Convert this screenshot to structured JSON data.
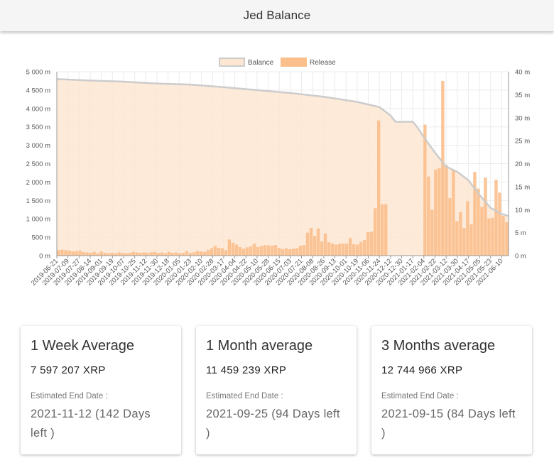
{
  "header": {
    "title": "Jed Balance"
  },
  "chart_data": {
    "type": "bar",
    "legend": [
      "Balance",
      "Release"
    ],
    "legend_position": "top-center",
    "grid": true,
    "colors": {
      "balance_fill": "#fde6d2",
      "balance_line": "#cccccc",
      "release_bar": "#fbbf8c",
      "grid": "#ebebeb"
    },
    "y_left": {
      "label": "",
      "range": [
        0,
        5000
      ],
      "unit": "m",
      "ticks": [
        "0 m",
        "500 m",
        "1 000 m",
        "1 500 m",
        "2 000 m",
        "2 500 m",
        "3 000 m",
        "3 500 m",
        "4 000 m",
        "4 500 m",
        "5 000 m"
      ]
    },
    "y_right": {
      "label": "",
      "range": [
        0,
        40
      ],
      "unit": "m",
      "ticks": [
        "0 m",
        "5 m",
        "10 m",
        "15 m",
        "20 m",
        "25 m",
        "30 m",
        "35 m",
        "40 m"
      ]
    },
    "x_ticks": [
      "2019-06-21",
      "2019-07-09",
      "2019-07-27",
      "2019-08-14",
      "2019-09-01",
      "2019-09-19",
      "2019-10-07",
      "2019-10-25",
      "2019-11-12",
      "2019-11-30",
      "2019-12-18",
      "2020-01-05",
      "2020-01-23",
      "2020-02-10",
      "2020-02-28",
      "2020-03-17",
      "2020-04-04",
      "2020-04-22",
      "2020-05-10",
      "2020-05-28",
      "2020-06-15",
      "2020-07-03",
      "2020-07-21",
      "2020-08-08",
      "2020-08-26",
      "2020-09-13",
      "2020-10-01",
      "2020-10-19",
      "2020-11-06",
      "2020-11-24",
      "2020-12-12",
      "2020-12-30",
      "2021-01-17",
      "2021-02-04",
      "2021-02-22",
      "2021-03-12",
      "2021-03-30",
      "2021-04-17",
      "2021-05-05",
      "2021-05-23",
      "2021-06-10"
    ],
    "balance": [
      {
        "date": "2019-06-21",
        "value": 4800
      },
      {
        "date": "2019-08-14",
        "value": 4760
      },
      {
        "date": "2019-10-07",
        "value": 4730
      },
      {
        "date": "2019-11-30",
        "value": 4680
      },
      {
        "date": "2020-01-23",
        "value": 4650
      },
      {
        "date": "2020-03-17",
        "value": 4580
      },
      {
        "date": "2020-05-10",
        "value": 4500
      },
      {
        "date": "2020-07-03",
        "value": 4420
      },
      {
        "date": "2020-08-26",
        "value": 4320
      },
      {
        "date": "2020-10-19",
        "value": 4180
      },
      {
        "date": "2020-11-24",
        "value": 4040
      },
      {
        "date": "2020-12-12",
        "value": 3810
      },
      {
        "date": "2020-12-20",
        "value": 3640
      },
      {
        "date": "2021-01-17",
        "value": 3640
      },
      {
        "date": "2021-01-24",
        "value": 3500
      },
      {
        "date": "2021-02-04",
        "value": 3220
      },
      {
        "date": "2021-02-22",
        "value": 2800
      },
      {
        "date": "2021-03-12",
        "value": 2420
      },
      {
        "date": "2021-03-30",
        "value": 2280
      },
      {
        "date": "2021-04-17",
        "value": 2050
      },
      {
        "date": "2021-05-05",
        "value": 1650
      },
      {
        "date": "2021-05-23",
        "value": 1300
      },
      {
        "date": "2021-06-10",
        "value": 1130
      },
      {
        "date": "2021-06-21",
        "value": 1080
      }
    ],
    "release_axis": "right",
    "release": [
      1.2,
      1.3,
      1.2,
      1.1,
      0.9,
      1.0,
      1.1,
      0.8,
      0.7,
      0.6,
      0.8,
      0.5,
      0.9,
      0.6,
      0.5,
      0.6,
      0.5,
      0.7,
      0.6,
      0.5,
      0.6,
      0.8,
      0.7,
      0.6,
      0.7,
      0.6,
      0.7,
      0.8,
      0.6,
      0.7,
      0.5,
      0.8,
      0.6,
      0.7,
      0.5,
      0.6,
      1.0,
      0.6,
      0.7,
      1.0,
      0.9,
      0.8,
      1.2,
      1.6,
      2.1,
      1.7,
      1.6,
      1.2,
      3.5,
      2.8,
      2.4,
      1.9,
      1.5,
      1.8,
      2.0,
      2.6,
      1.9,
      2.1,
      2.3,
      2.2,
      2.2,
      2.3,
      1.7,
      1.4,
      1.6,
      1.4,
      1.5,
      1.6,
      2.1,
      2.3,
      5.0,
      6.0,
      4.3,
      5.9,
      3.1,
      4.8,
      2.9,
      2.6,
      2.4,
      2.6,
      2.6,
      2.6,
      3.8,
      2.5,
      2.4,
      3.0,
      3.4,
      5.1,
      5.2,
      10.3,
      29.4,
      11.2,
      11.2,
      0,
      0,
      0,
      0,
      0,
      0,
      0,
      0,
      0,
      0,
      28.5,
      17.2,
      10.0,
      18.7,
      19.0,
      38.0,
      19.7,
      12.5,
      18.7,
      7.5,
      9.5,
      6.0,
      11.8,
      6.8,
      18.2,
      14.6,
      10.6,
      17.0,
      8.1,
      8.2,
      16.5,
      13.7,
      8.6,
      7.3
    ],
    "release_dates": {
      "start": "2019-06-21",
      "end": "2021-06-21"
    }
  },
  "cards": [
    {
      "title": "1 Week Average",
      "value": "7 597 207 XRP",
      "label": "Estimated End Date :",
      "date_line1": "2021-11-12 (142 Days",
      "date_line2": "left )"
    },
    {
      "title": "1 Month average",
      "value": "11 459 239 XRP",
      "label": "Estimated End Date :",
      "date_line1": "2021-09-25 (94 Days left",
      "date_line2": ")"
    },
    {
      "title": "3 Months average",
      "value": "12 744 966 XRP",
      "label": "Estimated End Date :",
      "date_line1": "2021-09-15 (84 Days left",
      "date_line2": ")"
    }
  ]
}
